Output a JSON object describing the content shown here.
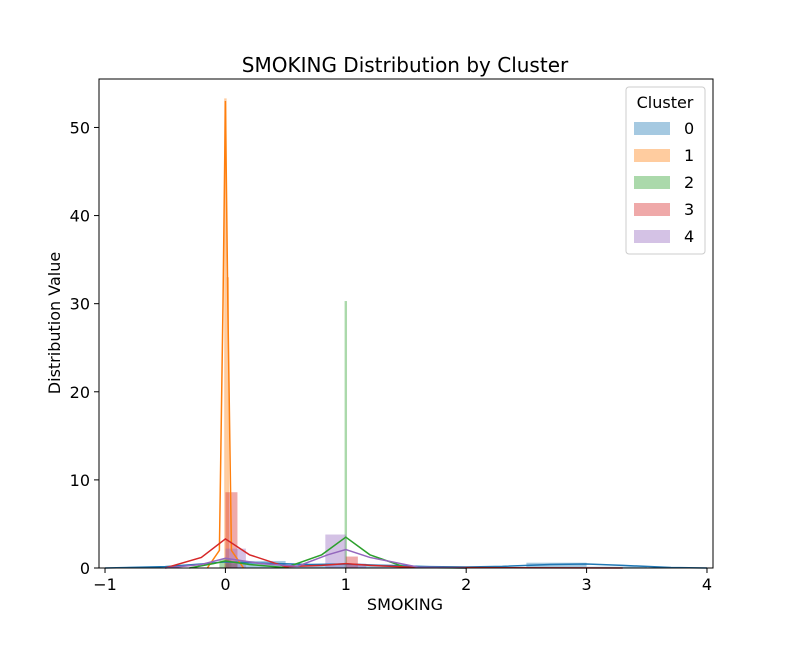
{
  "chart_data": {
    "type": "bar",
    "title": "SMOKING Distribution by Cluster",
    "xlabel": "SMOKING",
    "ylabel": "Distribution Value",
    "xlim": [
      -1.05,
      4.05
    ],
    "ylim": [
      0,
      55.5
    ],
    "xticks": [
      -1,
      0,
      1,
      2,
      3,
      4
    ],
    "xtick_labels": [
      "−1",
      "0",
      "1",
      "2",
      "3",
      "4"
    ],
    "yticks": [
      0,
      10,
      20,
      30,
      40,
      50
    ],
    "ytick_labels": [
      "0",
      "10",
      "20",
      "30",
      "40",
      "50"
    ],
    "grid": false,
    "legend": {
      "title": "Cluster",
      "position": "top-right"
    },
    "series": [
      {
        "name": "0",
        "color": "#1f77b4",
        "bins": [
          [
            0,
            0.5,
            0.8
          ],
          [
            0.5,
            1.0,
            0.35
          ],
          [
            1.0,
            1.5,
            0.4
          ],
          [
            2.5,
            3.0,
            0.6
          ],
          [
            3.0,
            3.5,
            0.15
          ]
        ],
        "kde": [
          [
            -1.0,
            0.0
          ],
          [
            -0.5,
            0.15
          ],
          [
            -0.2,
            0.45
          ],
          [
            0.0,
            0.7
          ],
          [
            0.3,
            0.55
          ],
          [
            0.7,
            0.4
          ],
          [
            1.0,
            0.45
          ],
          [
            1.3,
            0.3
          ],
          [
            1.7,
            0.15
          ],
          [
            2.0,
            0.12
          ],
          [
            2.3,
            0.18
          ],
          [
            2.7,
            0.4
          ],
          [
            3.0,
            0.45
          ],
          [
            3.3,
            0.3
          ],
          [
            3.7,
            0.05
          ],
          [
            4.0,
            0.0
          ]
        ]
      },
      {
        "name": "1",
        "color": "#ff7f0e",
        "bins": [
          [
            -0.01,
            0.01,
            53.3
          ],
          [
            0.01,
            0.03,
            33.0
          ]
        ],
        "kde": [
          [
            -0.15,
            0.0
          ],
          [
            -0.05,
            2.0
          ],
          [
            -0.02,
            30.0
          ],
          [
            0.0,
            53.0
          ],
          [
            0.02,
            30.0
          ],
          [
            0.05,
            2.0
          ],
          [
            0.15,
            0.0
          ]
        ]
      },
      {
        "name": "2",
        "color": "#2ca02c",
        "bins": [
          [
            0.99,
            1.01,
            30.3
          ],
          [
            0.0,
            0.1,
            0.5
          ],
          [
            -0.05,
            0.05,
            1.0
          ]
        ],
        "kde": [
          [
            -0.3,
            0.0
          ],
          [
            -0.1,
            0.5
          ],
          [
            0.0,
            0.8
          ],
          [
            0.2,
            0.4
          ],
          [
            0.5,
            0.05
          ],
          [
            0.8,
            1.5
          ],
          [
            1.0,
            3.5
          ],
          [
            1.2,
            1.5
          ],
          [
            1.5,
            0.05
          ],
          [
            2.0,
            0.0
          ]
        ]
      },
      {
        "name": "3",
        "color": "#d62728",
        "bins": [
          [
            0.0,
            0.1,
            8.6
          ],
          [
            1.0,
            1.1,
            1.3
          ]
        ],
        "kde": [
          [
            -0.5,
            0.0
          ],
          [
            -0.2,
            1.2
          ],
          [
            0.0,
            3.3
          ],
          [
            0.2,
            1.5
          ],
          [
            0.5,
            0.15
          ],
          [
            0.8,
            0.3
          ],
          [
            1.0,
            0.5
          ],
          [
            1.2,
            0.3
          ],
          [
            1.6,
            0.05
          ],
          [
            3.3,
            0.0
          ]
        ]
      },
      {
        "name": "4",
        "color": "#9467bd",
        "bins": [
          [
            0.0,
            0.17,
            2.2
          ],
          [
            0.83,
            1.0,
            3.8
          ],
          [
            1.0,
            1.17,
            0.5
          ]
        ],
        "kde": [
          [
            -0.5,
            0.0
          ],
          [
            -0.2,
            0.4
          ],
          [
            0.0,
            1.1
          ],
          [
            0.3,
            0.5
          ],
          [
            0.6,
            0.2
          ],
          [
            0.85,
            1.5
          ],
          [
            1.0,
            2.1
          ],
          [
            1.2,
            1.2
          ],
          [
            1.6,
            0.1
          ],
          [
            2.0,
            0.0
          ]
        ]
      }
    ]
  }
}
